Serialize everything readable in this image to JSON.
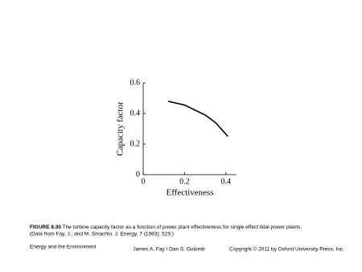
{
  "chart_data": {
    "type": "line",
    "xlabel": "Effectiveness",
    "ylabel": "Capacity factor",
    "x": [
      0.12,
      0.2,
      0.3,
      0.35,
      0.41
    ],
    "series": [
      {
        "color": "#000000",
        "values": [
          0.48,
          0.455,
          0.39,
          0.34,
          0.25
        ]
      }
    ],
    "xlim": [
      0,
      0.45
    ],
    "ylim": [
      0,
      0.6
    ],
    "xticks": [
      0,
      0.2,
      0.4
    ],
    "yticks": [
      0,
      0.2,
      0.4,
      0.6
    ],
    "grid": false
  },
  "caption": {
    "figure": "FIGURE 8.30",
    "text": "The turbine capacity factor as a function of power plant effectiveness for single effect tidal power plants.",
    "source": "(Data from Fay, J., and M. Smachlo. J. Energy, 7 (1983): 529.)"
  },
  "footer": {
    "left": "Energy and the Environment",
    "center": "James A. Fay / Dan S. Golomb",
    "right": "Copyright © 2011 by Oxford University Press, Inc."
  }
}
